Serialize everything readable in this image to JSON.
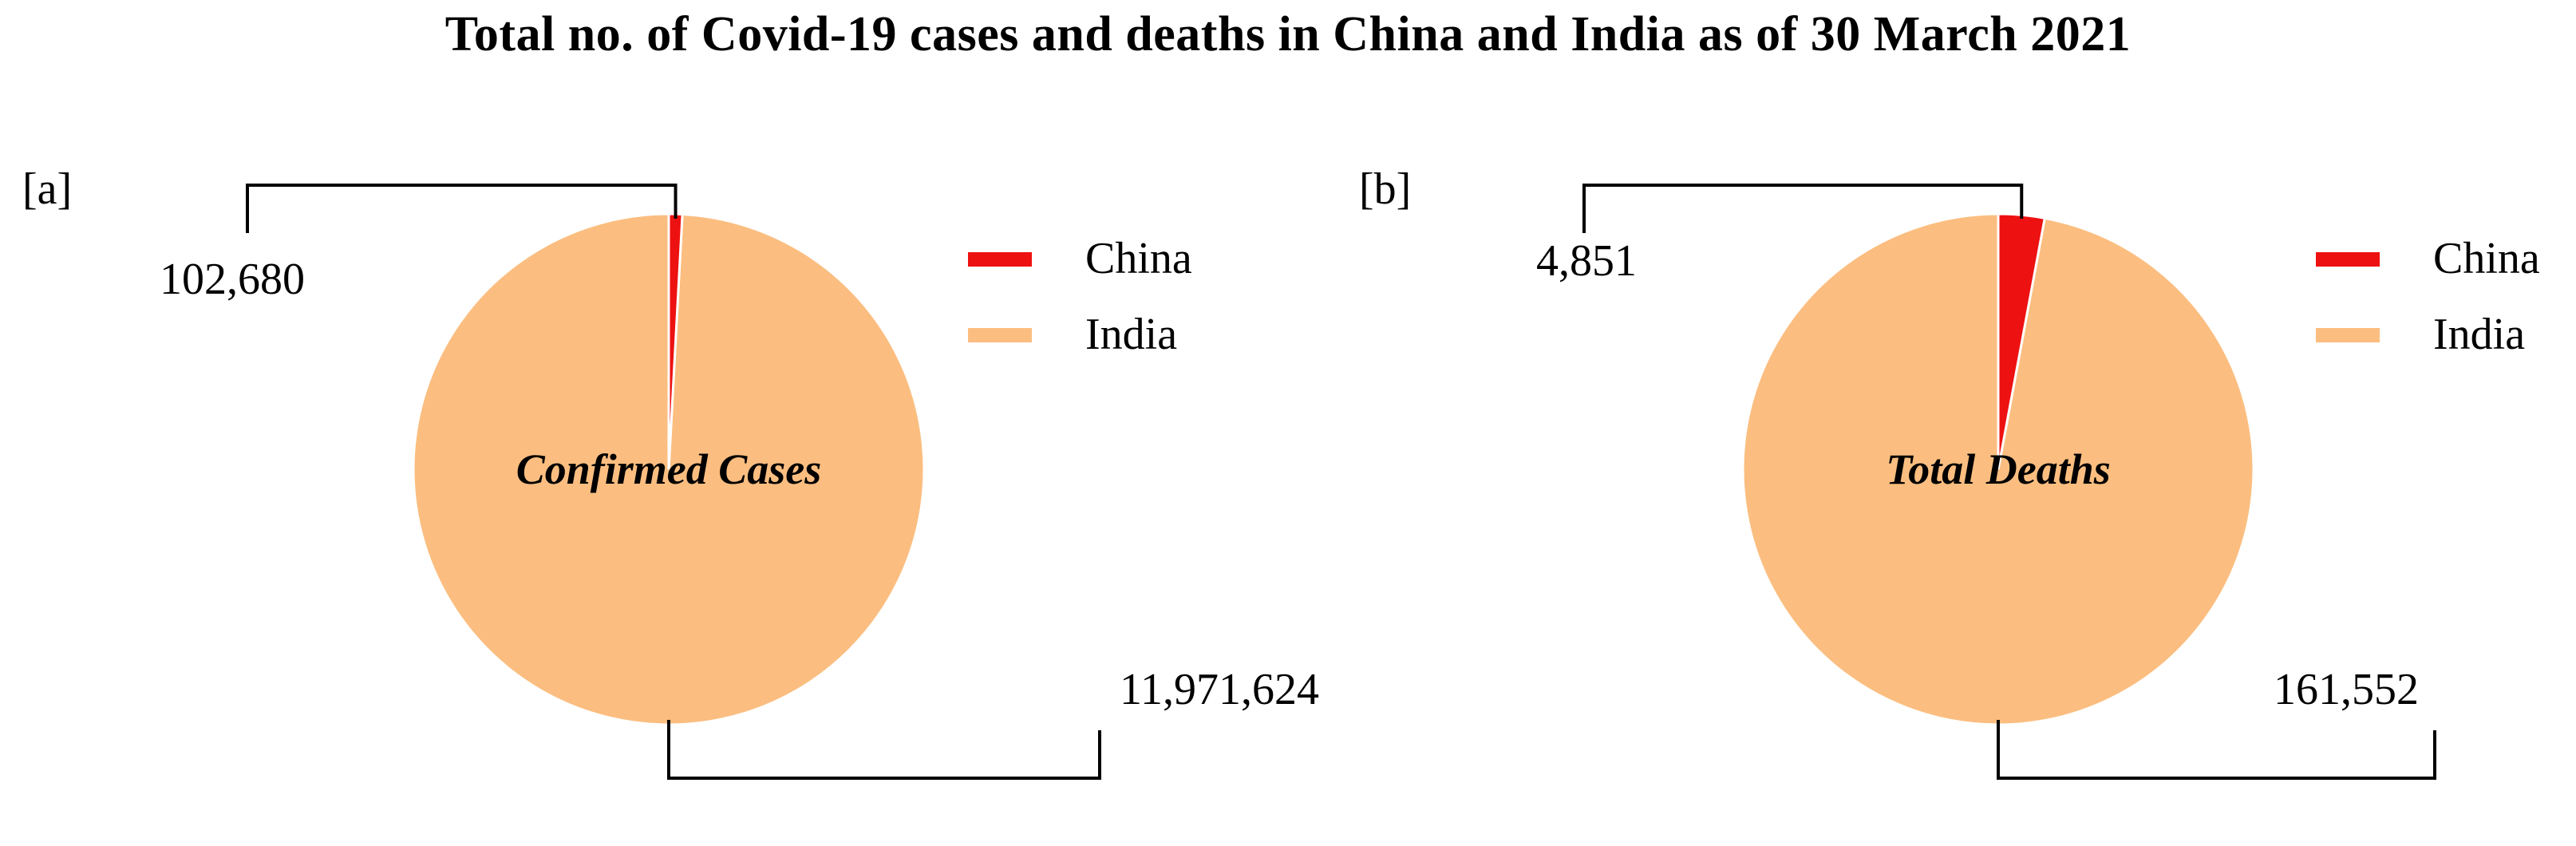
{
  "title": "Total no. of Covid-19 cases and deaths in China and India as of 30 March 2021",
  "colors": {
    "china": "#ee1111",
    "india": "#fbbe80"
  },
  "chart_data": [
    {
      "type": "pie",
      "panel_label": "[a]",
      "center_label": "Confirmed Cases",
      "legend_position": "right",
      "slices": [
        {
          "name": "China",
          "value": 102680,
          "value_label": "102,680"
        },
        {
          "name": "India",
          "value": 11971624,
          "value_label": "11,971,624"
        }
      ]
    },
    {
      "type": "pie",
      "panel_label": "[b]",
      "center_label": "Total Deaths",
      "legend_position": "right",
      "slices": [
        {
          "name": "China",
          "value": 4851,
          "value_label": "4,851"
        },
        {
          "name": "India",
          "value": 161552,
          "value_label": "161,552"
        }
      ]
    }
  ]
}
